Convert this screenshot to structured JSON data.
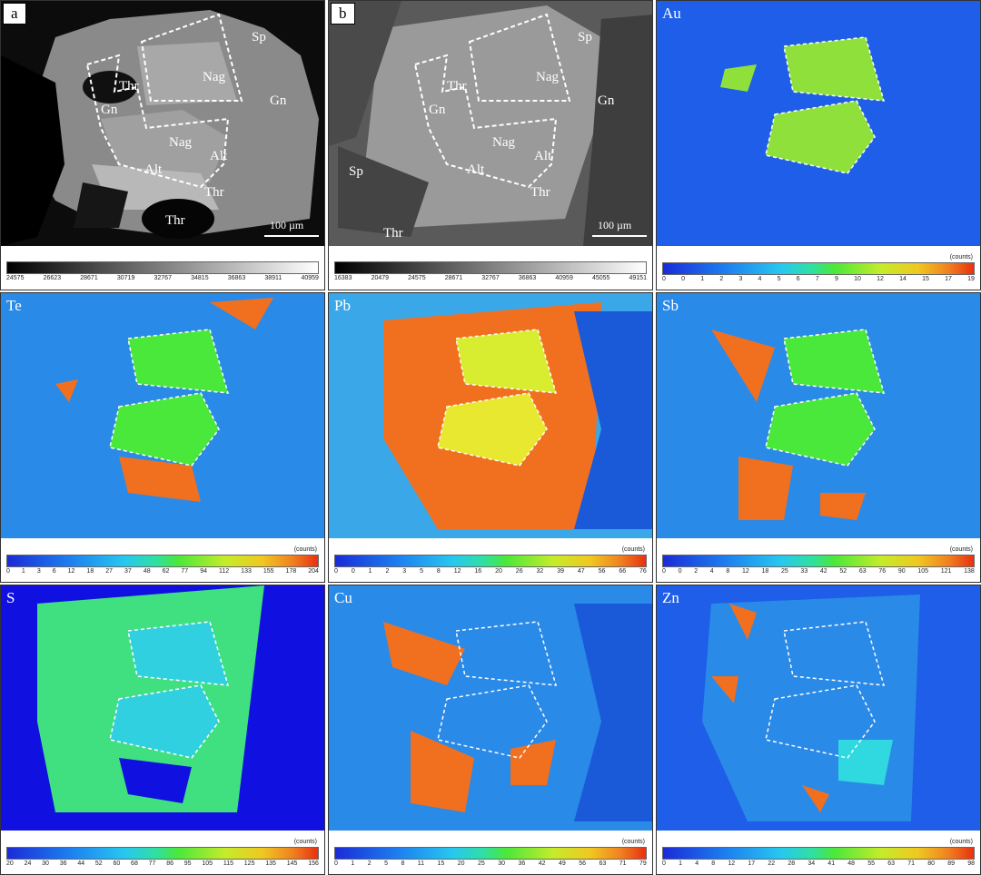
{
  "panels": [
    {
      "label": "a",
      "type": "bse",
      "scale": "100 µm",
      "ticks": [
        "24575",
        "26623",
        "28671",
        "30719",
        "32767",
        "34815",
        "36863",
        "38911",
        "40959"
      ],
      "annotations": [
        "Sp",
        "Thr",
        "Nag",
        "Gn",
        "Gn",
        "Nag",
        "Alt",
        "Alt",
        "Thr",
        "Thr"
      ]
    },
    {
      "label": "b",
      "type": "se",
      "scale": "100 µm",
      "ticks": [
        "16383",
        "20479",
        "24575",
        "28671",
        "32767",
        "36863",
        "40959",
        "45055",
        "49151"
      ],
      "annotations": [
        "Sp",
        "Thr",
        "Nag",
        "Gn",
        "Gn",
        "Nag",
        "Alt",
        "Alt",
        "Thr",
        "Sp",
        "Thr"
      ]
    },
    {
      "label": "Au",
      "type": "map",
      "counts": "(counts)",
      "ticks": [
        "0",
        "0",
        "1",
        "2",
        "3",
        "4",
        "5",
        "6",
        "7",
        "9",
        "10",
        "12",
        "14",
        "15",
        "17",
        "19"
      ]
    },
    {
      "label": "Te",
      "type": "map",
      "counts": "(counts)",
      "ticks": [
        "0",
        "1",
        "3",
        "6",
        "12",
        "18",
        "27",
        "37",
        "48",
        "62",
        "77",
        "94",
        "112",
        "133",
        "155",
        "178",
        "204"
      ]
    },
    {
      "label": "Pb",
      "type": "map",
      "counts": "(counts)",
      "ticks": [
        "0",
        "0",
        "1",
        "2",
        "3",
        "5",
        "8",
        "12",
        "16",
        "20",
        "26",
        "32",
        "39",
        "47",
        "56",
        "66",
        "76"
      ]
    },
    {
      "label": "Sb",
      "type": "map",
      "counts": "(counts)",
      "ticks": [
        "0",
        "0",
        "2",
        "4",
        "8",
        "12",
        "18",
        "25",
        "33",
        "42",
        "52",
        "63",
        "76",
        "90",
        "105",
        "121",
        "138"
      ]
    },
    {
      "label": "S",
      "type": "map",
      "counts": "(counts)",
      "ticks": [
        "20",
        "24",
        "30",
        "36",
        "44",
        "52",
        "60",
        "68",
        "77",
        "86",
        "95",
        "105",
        "115",
        "125",
        "135",
        "145",
        "156"
      ]
    },
    {
      "label": "Cu",
      "type": "map",
      "counts": "(counts)",
      "ticks": [
        "0",
        "1",
        "2",
        "5",
        "8",
        "11",
        "15",
        "20",
        "25",
        "30",
        "36",
        "42",
        "49",
        "56",
        "63",
        "71",
        "79"
      ]
    },
    {
      "label": "Zn",
      "type": "map",
      "counts": "(counts)",
      "ticks": [
        "0",
        "1",
        "4",
        "8",
        "12",
        "17",
        "22",
        "28",
        "34",
        "41",
        "48",
        "55",
        "63",
        "71",
        "80",
        "89",
        "98"
      ]
    }
  ]
}
